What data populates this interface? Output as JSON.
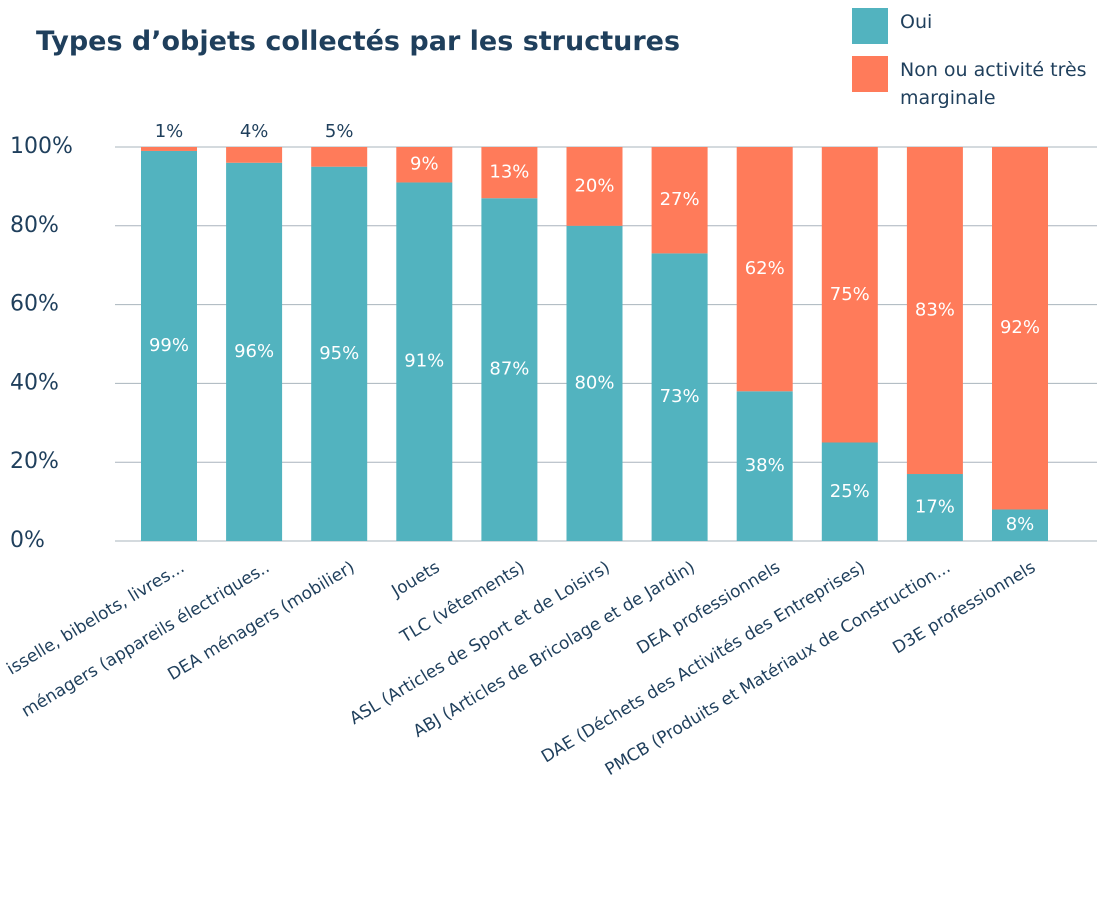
{
  "chart_data": {
    "type": "stacked_bar",
    "title": "Types d’objets collectés par les structures",
    "categories": [
      "isselle, bibelots, livres...",
      "ménagers (appareils électriques..",
      "DEA ménagers (mobilier)",
      "Jouets",
      "TLC (vêtements)",
      "ASL (Articles de Sport et de Loisirs)",
      "ABJ (Articles de Bricolage et de Jardin)",
      "DEA professionnels",
      "DAE (Déchets des Activités des Entreprises)",
      "PMCB (Produits et Matériaux de Construction...",
      "D3E professionnels"
    ],
    "series": [
      {
        "name": "Oui",
        "color": "#52b3bf",
        "values": [
          99,
          96,
          95,
          91,
          87,
          80,
          73,
          38,
          25,
          17,
          8
        ],
        "value_labels": [
          "99%",
          "96%",
          "95%",
          "91%",
          "87%",
          "80%",
          "73%",
          "38%",
          "25%",
          "17%",
          "8%"
        ]
      },
      {
        "name": "Non ou activité très marginale",
        "color": "#ff7b5a",
        "values": [
          1,
          4,
          5,
          9,
          13,
          20,
          27,
          62,
          75,
          83,
          92
        ],
        "value_labels": [
          "1%",
          "4%",
          "5%",
          "9%",
          "13%",
          "20%",
          "27%",
          "62%",
          "75%",
          "83%",
          "92%"
        ]
      }
    ],
    "ylim": [
      0,
      100
    ],
    "yticks": [
      {
        "value": 0,
        "label": "0%"
      },
      {
        "value": 20,
        "label": "20%"
      },
      {
        "value": 40,
        "label": "40%"
      },
      {
        "value": 60,
        "label": "60%"
      },
      {
        "value": 80,
        "label": "80%"
      },
      {
        "value": 100,
        "label": "100%"
      }
    ],
    "grid": true
  }
}
